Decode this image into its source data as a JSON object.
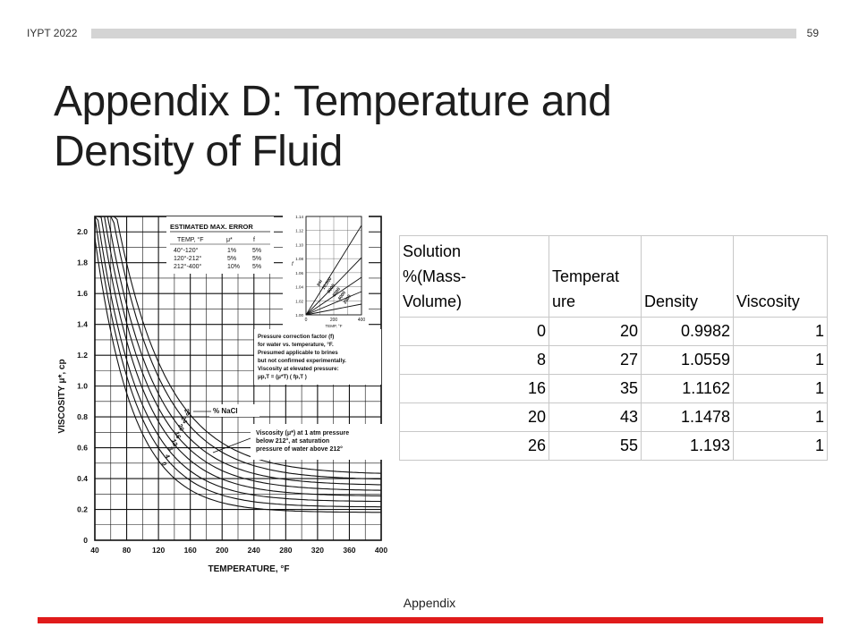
{
  "header": {
    "conference": "IYPT 2022",
    "page_number": "59"
  },
  "title": "Appendix D: Temperature and Density of Fluid",
  "figure": {
    "y_axis_label": "VISCOSITY μ*, cp",
    "x_axis_label": "TEMPERATURE, °F",
    "x_ticks": [
      "40",
      "80",
      "120",
      "160",
      "200",
      "240",
      "280",
      "320",
      "360",
      "400"
    ],
    "y_ticks": [
      "0",
      "0.2",
      "0.4",
      "0.6",
      "0.8",
      "1.0",
      "1.2",
      "1.4",
      "1.6",
      "1.8",
      "2.0"
    ],
    "error_table": {
      "title": "ESTIMATED MAX. ERROR",
      "headers": [
        "TEMP, °F",
        "μ*",
        "f"
      ],
      "rows": [
        [
          "40°-120°",
          "1%",
          "5%"
        ],
        [
          "120°-212°",
          "5%",
          "5%"
        ],
        [
          "212°-400°",
          "10%",
          "5%"
        ]
      ]
    },
    "inset": {
      "x_label": "TEMP, °F",
      "y_label": "f",
      "x_ticks": [
        "0",
        "200",
        "400"
      ],
      "y_ticks": [
        "1.00",
        "1.02",
        "1.04",
        "1.06",
        "1.08",
        "1.10",
        "1.12",
        "1.14"
      ],
      "curve_labels": [
        "psi",
        "10,000",
        "8000",
        "6000",
        "4000",
        "2000"
      ]
    },
    "notes": {
      "pressure": [
        "Pressure correction factor (f)",
        "for water vs. temperature, °F.",
        "Presumed applicable to brines",
        "but not confirmed experimentally.",
        "Viscosity at elevated pressure:",
        "μp,T = (μ*T) ( fp,T )"
      ],
      "nacl_label": "% NaCl",
      "viscosity": [
        "Viscosity (μ*) at 1 atm pressure",
        "below 212°, at saturation",
        "pressure of water above 212°"
      ],
      "curve_labels": [
        "26",
        "24",
        "20",
        "16",
        "12",
        "8",
        "4",
        "0"
      ]
    }
  },
  "table": {
    "headers": [
      "Solution %(Mass-Volume)",
      "Temperature",
      "Density",
      "Viscosity"
    ],
    "header_lines": [
      [
        "Solution",
        "%(Mass-",
        "Volume)"
      ],
      [
        "Temperat",
        "ure"
      ],
      [
        "Density"
      ],
      [
        "Viscosity"
      ]
    ],
    "rows": [
      [
        "0",
        "20",
        "0.9982",
        "1"
      ],
      [
        "8",
        "27",
        "1.0559",
        "1"
      ],
      [
        "16",
        "35",
        "1.1162",
        "1"
      ],
      [
        "20",
        "43",
        "1.1478",
        "1"
      ],
      [
        "26",
        "55",
        "1.193",
        "1"
      ]
    ]
  },
  "footer": "Appendix",
  "colors": {
    "accent": "#e01b1b",
    "topbar": "#d4d4d4"
  }
}
